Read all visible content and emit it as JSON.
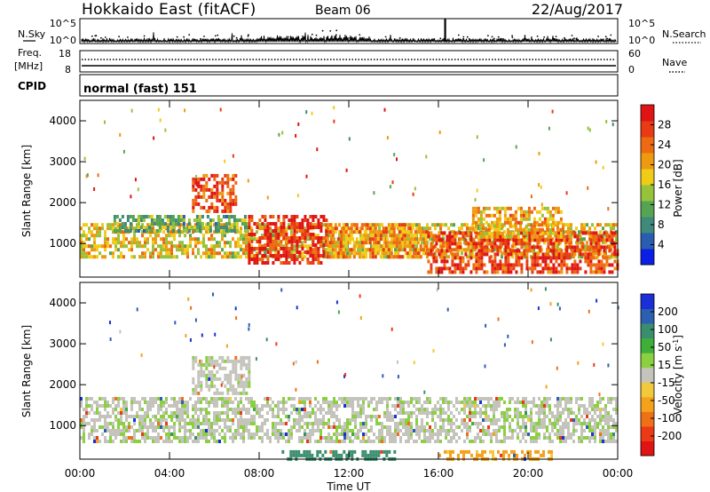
{
  "header": {
    "title": "Hokkaido East (fitACF)",
    "beam": "Beam 06",
    "date": "22/Aug/2017"
  },
  "nsky_panel": {
    "left_label": "N.Sky",
    "left_ticks": [
      "10^5",
      "10^0"
    ],
    "right_ticks": [
      "10^5",
      "10^0"
    ],
    "right_label": "N.Search"
  },
  "freq_panel": {
    "left_label_top": "Freq.",
    "left_label_bottom": "[MHz]",
    "left_ticks": [
      "18",
      "8"
    ],
    "right_ticks": [
      "60",
      "0"
    ],
    "right_label": "Nave"
  },
  "cpid_panel": {
    "label": "CPID",
    "value": "normal (fast) 151"
  },
  "chart_data": [
    {
      "type": "heatmap",
      "quantity": "Power",
      "ylabel": "Slant Range [km]",
      "ylim": [
        180,
        4500
      ],
      "yticks": [
        1000,
        2000,
        3000,
        4000
      ],
      "colorbar": {
        "label": "Power [dB]",
        "ticks": [
          4,
          8,
          12,
          16,
          20,
          24,
          28
        ],
        "range": [
          0,
          32
        ],
        "colors": [
          "#0a1ee6",
          "#2a5cb0",
          "#3f8a7a",
          "#56a453",
          "#96c23c",
          "#f0cc18",
          "#ee9a10",
          "#ee6a12",
          "#e83a14",
          "#e01414"
        ]
      },
      "regions": [
        {
          "t": [
            0.0,
            24.0
          ],
          "r": [
            650,
            1500
          ],
          "power": 18
        },
        {
          "t": [
            1.5,
            7.5
          ],
          "r": [
            1300,
            1700
          ],
          "power": 12
        },
        {
          "t": [
            5.0,
            7.0
          ],
          "r": [
            1800,
            2700
          ],
          "power": 26
        },
        {
          "t": [
            7.5,
            11.0
          ],
          "r": [
            500,
            1700
          ],
          "power": 29
        },
        {
          "t": [
            11.0,
            15.5
          ],
          "r": [
            700,
            1500
          ],
          "power": 22
        },
        {
          "t": [
            15.5,
            24.0
          ],
          "r": [
            300,
            1300
          ],
          "power": 27
        },
        {
          "t": [
            17.5,
            21.5
          ],
          "r": [
            1200,
            1900
          ],
          "power": 20
        }
      ]
    },
    {
      "type": "heatmap",
      "quantity": "Velocity",
      "ylabel": "Slant Range [km]",
      "xlabel": "Time UT",
      "ylim": [
        180,
        4500
      ],
      "yticks": [
        1000,
        2000,
        3000,
        4000
      ],
      "xlim": [
        0,
        24
      ],
      "xticks": [
        "00:00",
        "04:00",
        "08:00",
        "12:00",
        "16:00",
        "20:00",
        "00:00"
      ],
      "colorbar": {
        "label": "Velocity [m s^-1]",
        "ticks": [
          200,
          100,
          50,
          15,
          -15,
          -50,
          -100,
          -200
        ],
        "colors": [
          "#1a2fd8",
          "#2c5fb0",
          "#3a8e6e",
          "#3fae3a",
          "#8ad040",
          "#c4c4bc",
          "#f2c83c",
          "#f4a21c",
          "#f07018",
          "#ec3a16",
          "#e01414"
        ]
      },
      "regions": [
        {
          "t": [
            0.0,
            24.0
          ],
          "r": [
            600,
            1700
          ],
          "velocity": 0
        },
        {
          "t": [
            5.0,
            7.5
          ],
          "r": [
            1800,
            2700
          ],
          "velocity": 0
        },
        {
          "t": [
            9.0,
            14.0
          ],
          "r": [
            180,
            400
          ],
          "velocity": 60
        },
        {
          "t": [
            16.0,
            21.0
          ],
          "r": [
            180,
            400
          ],
          "velocity": -40
        }
      ]
    }
  ]
}
